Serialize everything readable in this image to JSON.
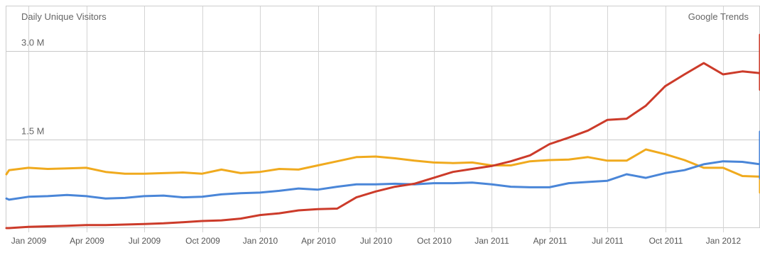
{
  "chart_data": {
    "type": "line",
    "title": "Daily Unique Visitors",
    "source_label": "Google Trends",
    "xlabel": "",
    "ylabel": "",
    "ylim": [
      0,
      3750000
    ],
    "y_ticks": [
      {
        "value": 1500000,
        "label": "1.5 M"
      },
      {
        "value": 3000000,
        "label": "3.0 M"
      }
    ],
    "grid": true,
    "legend": "none",
    "x_ticks": [
      "Jan 2009",
      "Apr 2009",
      "Jul 2009",
      "Oct 2009",
      "Jan 2010",
      "Apr 2010",
      "Jul 2010",
      "Oct 2010",
      "Jan 2011",
      "Apr 2011",
      "Jul 2011",
      "Oct 2011",
      "Jan 2012"
    ],
    "x_start": "Nov 2008",
    "x_end": "Mar 2012",
    "series": [
      {
        "color": "#cc3b2a",
        "values": [
          0,
          0,
          20000,
          30000,
          40000,
          50000,
          50000,
          60000,
          70000,
          80000,
          100000,
          120000,
          130000,
          160000,
          220000,
          250000,
          300000,
          320000,
          330000,
          520000,
          620000,
          700000,
          750000,
          850000,
          950000,
          1000000,
          1050000,
          1130000,
          1230000,
          1420000,
          1530000,
          1650000,
          1830000,
          1850000,
          2070000,
          2400000,
          2600000,
          2790000,
          2600000,
          2650000,
          2620000,
          2580000,
          2630000,
          2590000,
          2520000,
          2460000,
          2380000,
          2450000,
          2340000,
          2890000,
          3050000,
          2990000,
          3060000,
          3030000,
          3100000,
          3270000,
          3230000,
          3240000
        ]
      },
      {
        "color": "#4a86d8",
        "values": [
          500000,
          480000,
          530000,
          540000,
          560000,
          540000,
          500000,
          510000,
          540000,
          550000,
          520000,
          530000,
          570000,
          590000,
          600000,
          630000,
          670000,
          650000,
          700000,
          740000,
          740000,
          750000,
          740000,
          760000,
          760000,
          770000,
          740000,
          700000,
          690000,
          690000,
          760000,
          780000,
          800000,
          910000,
          850000,
          930000,
          980000,
          1080000,
          1130000,
          1120000,
          1080000,
          1060000,
          1060000,
          1020000,
          980000,
          950000,
          930000,
          840000,
          1050000,
          1410000,
          1460000,
          1530000,
          1550000,
          1560000,
          1570000,
          1630000,
          1600000,
          1630000
        ]
      },
      {
        "color": "#f0aa1e",
        "values": [
          910000,
          980000,
          1020000,
          1000000,
          1010000,
          1020000,
          950000,
          920000,
          920000,
          930000,
          940000,
          920000,
          990000,
          930000,
          950000,
          1000000,
          990000,
          1060000,
          1130000,
          1200000,
          1210000,
          1180000,
          1140000,
          1110000,
          1100000,
          1110000,
          1060000,
          1060000,
          1130000,
          1150000,
          1160000,
          1200000,
          1140000,
          1140000,
          1330000,
          1250000,
          1150000,
          1020000,
          1020000,
          880000,
          870000,
          840000,
          810000,
          780000,
          710000,
          700000,
          630000,
          600000,
          710000,
          720000,
          690000,
          710000,
          670000,
          700000,
          710000,
          690000,
          630000,
          610000
        ]
      }
    ]
  }
}
